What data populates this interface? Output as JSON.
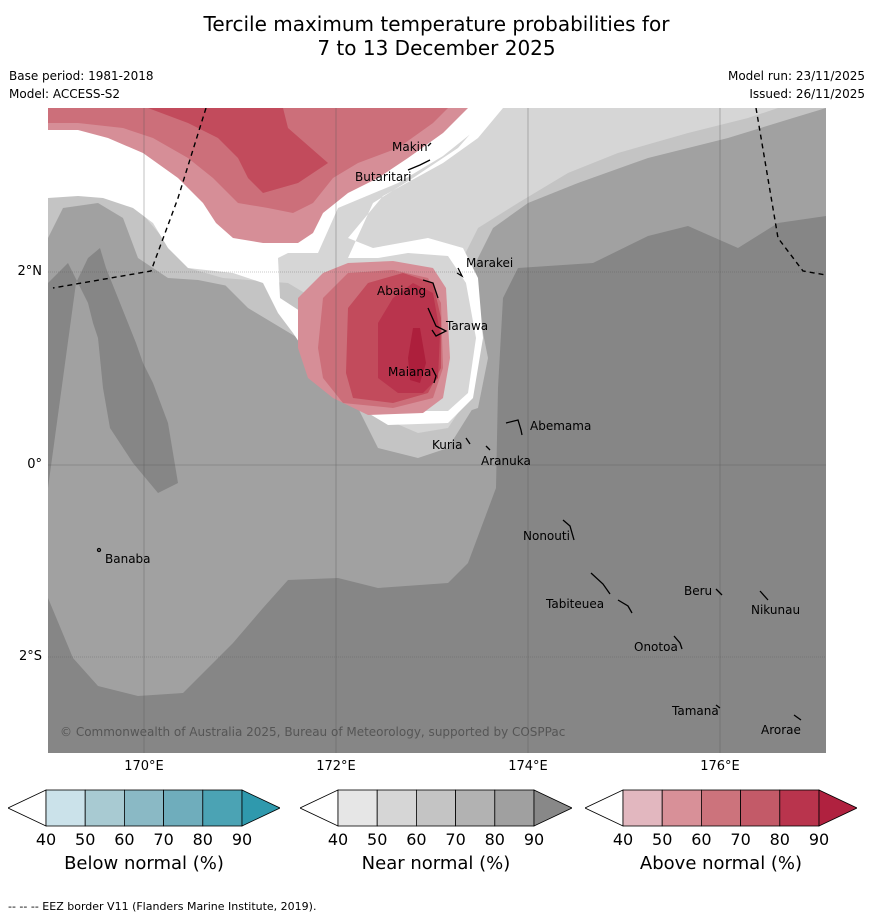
{
  "title_line1": "Tercile maximum temperature probabilities for",
  "title_line2": "7 to 13 December 2025",
  "base_period": "Base period: 1981-2018",
  "model": "Model: ACCESS-S2",
  "model_run": "Model run: 23/11/2025",
  "issued": "Issued: 26/11/2025",
  "copyright": "© Commonwealth of Australia 2025, Bureau of Meteorology, supported by COSPPac",
  "footnote": "--  --  -- EEZ border V11 (Flanders Marine Institute, 2019).",
  "lon_labels": [
    "170°E",
    "172°E",
    "174°E",
    "176°E"
  ],
  "lat_labels": [
    "2°N",
    "0°",
    "2°S"
  ],
  "places": [
    {
      "name": "Makin",
      "id": "makin"
    },
    {
      "name": "Butaritari",
      "id": "butaritari"
    },
    {
      "name": "Marakei",
      "id": "marakei"
    },
    {
      "name": "Abaiang",
      "id": "abaiang"
    },
    {
      "name": "Tarawa",
      "id": "tarawa"
    },
    {
      "name": "Maiana",
      "id": "maiana"
    },
    {
      "name": "Abemama",
      "id": "abemama"
    },
    {
      "name": "Kuria",
      "id": "kuria"
    },
    {
      "name": "Aranuka",
      "id": "aranuka"
    },
    {
      "name": "Nonouti",
      "id": "nonouti"
    },
    {
      "name": "Banaba",
      "id": "banaba"
    },
    {
      "name": "Beru",
      "id": "beru"
    },
    {
      "name": "Tabiteuea",
      "id": "tabiteuea"
    },
    {
      "name": "Nikunau",
      "id": "nikunau"
    },
    {
      "name": "Onotoa",
      "id": "onotoa"
    },
    {
      "name": "Tamana",
      "id": "tamana"
    },
    {
      "name": "Arorae",
      "id": "arorae"
    }
  ],
  "colorbars": [
    {
      "label": "Below normal (%)",
      "ticks": [
        "40",
        "50",
        "60",
        "70",
        "80",
        "90"
      ],
      "colors": [
        "#ffffff",
        "#cbe2ea",
        "#a8cad2",
        "#8ab9c5",
        "#6fadbc",
        "#4ba3b4",
        "#2f99ad"
      ]
    },
    {
      "label": "Near normal (%)",
      "ticks": [
        "40",
        "50",
        "60",
        "70",
        "80",
        "90"
      ],
      "colors": [
        "#ffffff",
        "#e6e6e6",
        "#d6d6d6",
        "#c4c4c4",
        "#b2b2b2",
        "#a0a0a0",
        "#888888"
      ]
    },
    {
      "label": "Above normal (%)",
      "ticks": [
        "40",
        "50",
        "60",
        "70",
        "80",
        "90"
      ],
      "colors": [
        "#ffffff",
        "#e2b7bf",
        "#d89098",
        "#cc737c",
        "#c35a68",
        "#b9344d",
        "#b0213f"
      ]
    }
  ]
}
